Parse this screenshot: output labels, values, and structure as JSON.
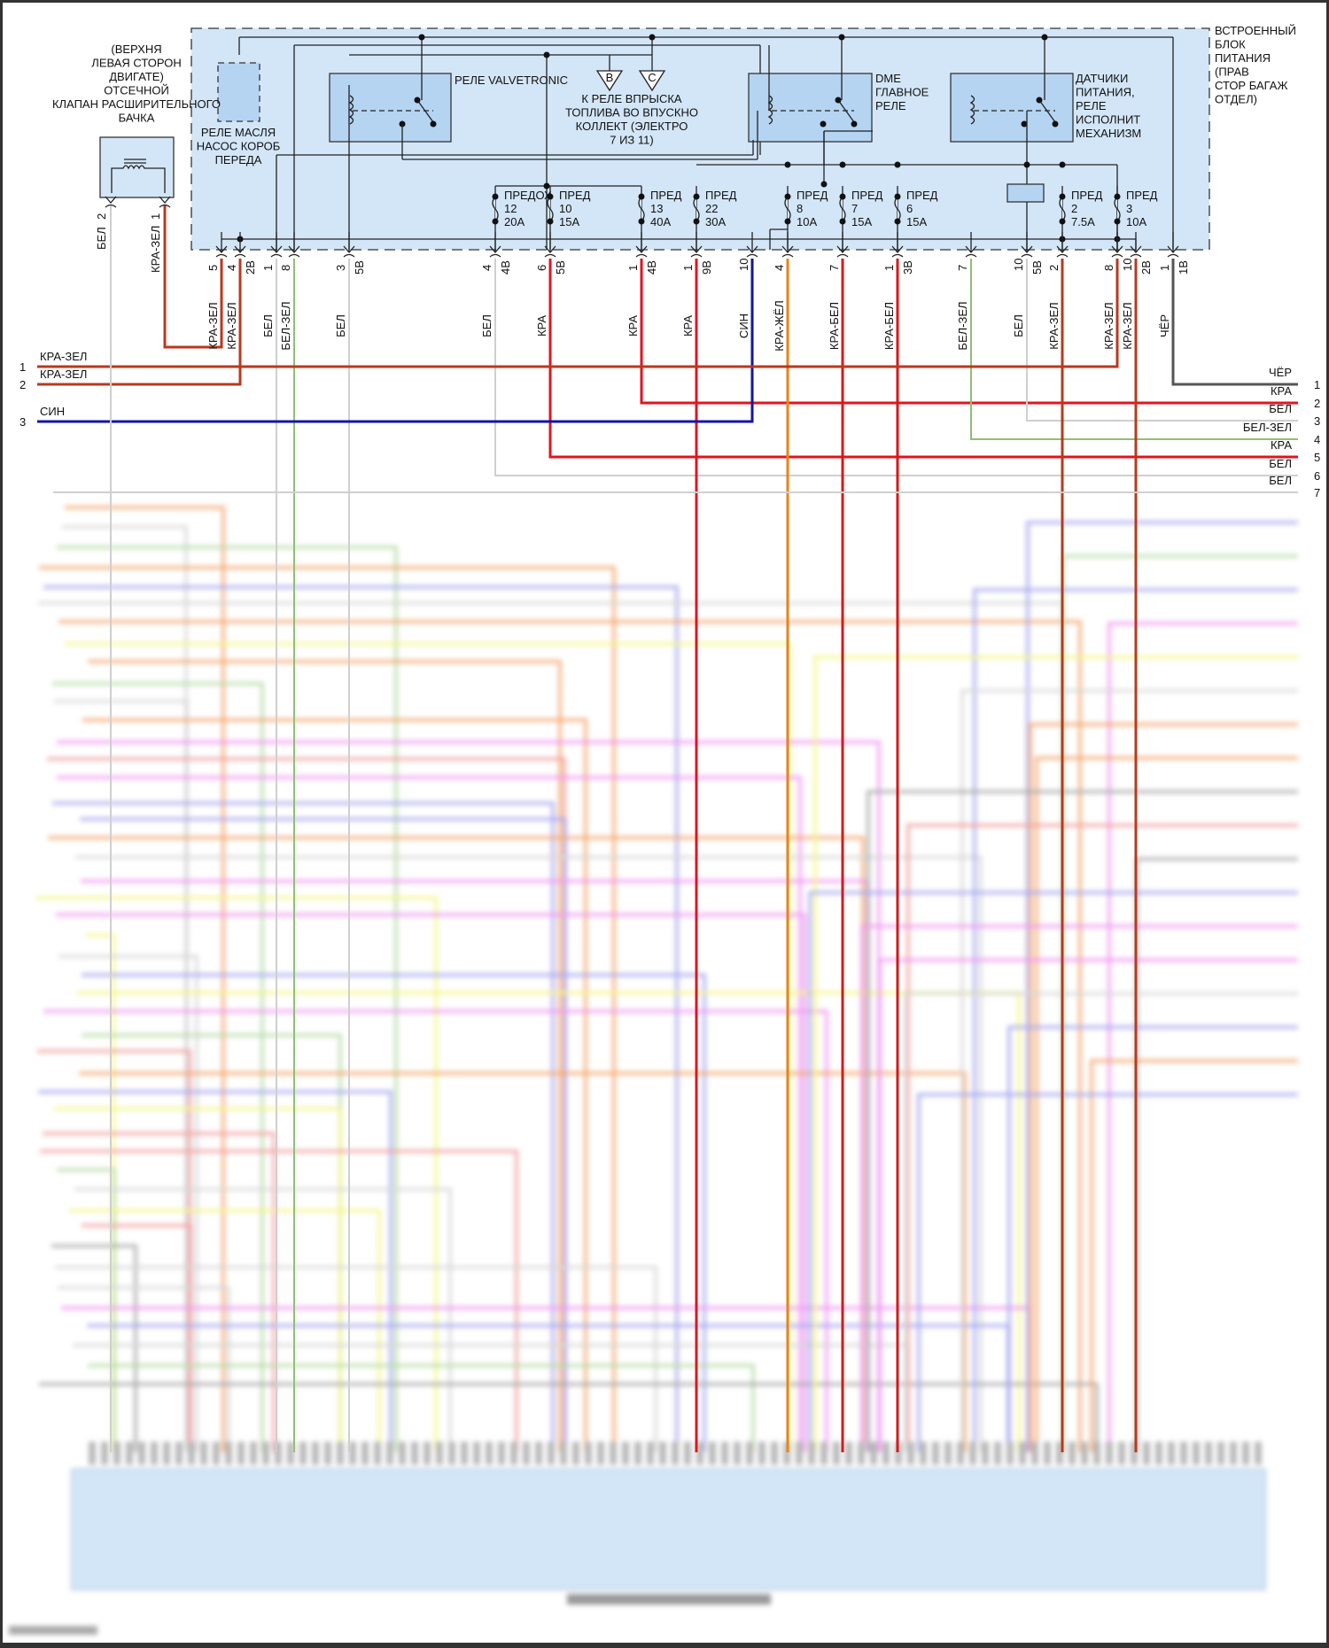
{
  "colors": {
    "box_fill": "#d3e6f8",
    "relay_fill": "#b4d4f2",
    "КРА-ЗЕЛ": "#b83a1c",
    "КРА": "#e3141e",
    "СИН": "#1414a8",
    "БЕЛ": "#cfcfcf",
    "БЕЛ-ЗЕЛ": "#8fbf76",
    "ЧЁР": "#555555",
    "КРА-ЖЁЛ": "#e8831e",
    "КРА-БЕЛ": "#d81818"
  },
  "solenoid": {
    "title_lines": [
      "(ВЕРХНЯ",
      "ЛЕВАЯ СТОРОН",
      "ДВИГАТЕ)",
      "ОТСЕЧНОЙ",
      "КЛАПАН РАСШИРИТЕЛЬНОГО",
      "БАЧКА"
    ],
    "pins": [
      {
        "pin": "2",
        "wire": "БЕЛ"
      },
      {
        "pin": "1",
        "wire": "КРА-ЗЕЛ"
      }
    ]
  },
  "power_block": {
    "title_lines": [
      "ВСТРОЕННЫЙ",
      "БЛОК",
      "ПИТАНИЯ",
      "(ПРАВ",
      "СТОР БАГАЖ",
      "ОТДЕЛ)"
    ],
    "oil_relay_lines": [
      "РЕЛЕ МАСЛЯ",
      "НАСОС КОРОБ",
      "ПЕРЕДА"
    ],
    "valvetronic_label": "РЕЛЕ VALVETRONIC",
    "injection_ref": {
      "markers": [
        "B",
        "C"
      ],
      "lines": [
        "К РЕЛЕ ВПРЫСКА",
        "ТОПЛИВА ВО ВПУСКНО",
        "КОЛЛЕКТ (ЭЛЕКТРО",
        "7 ИЗ 11)"
      ]
    },
    "dme_relay_lines": [
      "DME",
      "ГЛАВНОЕ",
      "РЕЛЕ"
    ],
    "sensor_relay_lines": [
      "ДАТЧИКИ",
      "ПИТАНИЯ,",
      "РЕЛЕ",
      "ИСПОЛНИТ",
      "МЕХАНИЗМ"
    ],
    "fuses": [
      {
        "name": "ПРЕДОХ",
        "number": "12",
        "rating": "20A"
      },
      {
        "name": "ПРЕД",
        "number": "10",
        "rating": "15A"
      },
      {
        "name": "ПРЕД",
        "number": "13",
        "rating": "40A"
      },
      {
        "name": "ПРЕД",
        "number": "22",
        "rating": "30A"
      },
      {
        "name": "ПРЕД",
        "number": "8",
        "rating": "10A"
      },
      {
        "name": "ПРЕД",
        "number": "7",
        "rating": "15A"
      },
      {
        "name": "ПРЕД",
        "number": "6",
        "rating": "15A"
      },
      {
        "name": "ПРЕД",
        "number": "2",
        "rating": "7.5A"
      },
      {
        "name": "ПРЕД",
        "number": "3",
        "rating": "10A"
      }
    ],
    "connectors": [
      {
        "pin": "5",
        "block": "",
        "wire": "КРА-ЗЕЛ"
      },
      {
        "pin": "4",
        "block": "2В",
        "wire": "КРА-ЗЕЛ"
      },
      {
        "pin": "1",
        "block": "",
        "wire": "БЕЛ"
      },
      {
        "pin": "8",
        "block": "",
        "wire": "БЕЛ-ЗЕЛ"
      },
      {
        "pin": "3",
        "block": "5В",
        "wire": "БЕЛ"
      },
      {
        "pin": "4",
        "block": "4В",
        "wire": "БЕЛ"
      },
      {
        "pin": "6",
        "block": "5В",
        "wire": "КРА"
      },
      {
        "pin": "1",
        "block": "4В",
        "wire": "КРА"
      },
      {
        "pin": "1",
        "block": "9В",
        "wire": "КРА"
      },
      {
        "pin": "10",
        "block": "",
        "wire": "СИН"
      },
      {
        "pin": "4",
        "block": "",
        "wire": "КРА-ЖЁЛ"
      },
      {
        "pin": "7",
        "block": "",
        "wire": "КРА-БЕЛ"
      },
      {
        "pin": "1",
        "block": "3В",
        "wire": "КРА-БЕЛ"
      },
      {
        "pin": "7",
        "block": "",
        "wire": "БЕЛ-ЗЕЛ"
      },
      {
        "pin": "10",
        "block": "5В",
        "wire": "БЕЛ"
      },
      {
        "pin": "2",
        "block": "",
        "wire": "КРА-ЗЕЛ"
      },
      {
        "pin": "8",
        "block": "",
        "wire": "КРА-ЗЕЛ"
      },
      {
        "pin": "10",
        "block": "2В",
        "wire": "КРА-ЗЕЛ"
      },
      {
        "pin": "1",
        "block": "1В",
        "wire": "ЧЁР"
      }
    ]
  },
  "left_harness": [
    {
      "num": "1",
      "wire": "КРА-ЗЕЛ"
    },
    {
      "num": "2",
      "wire": "КРА-ЗЕЛ"
    },
    {
      "num": "3",
      "wire": "СИН"
    }
  ],
  "right_harness": [
    {
      "num": "1",
      "wire": "ЧЁР"
    },
    {
      "num": "2",
      "wire": "КРА"
    },
    {
      "num": "3",
      "wire": "БЕЛ"
    },
    {
      "num": "4",
      "wire": "БЕЛ-ЗЕЛ"
    },
    {
      "num": "5",
      "wire": "КРА"
    },
    {
      "num": "6",
      "wire": "БЕЛ"
    },
    {
      "num": "7",
      "wire": "БЕЛ"
    }
  ]
}
